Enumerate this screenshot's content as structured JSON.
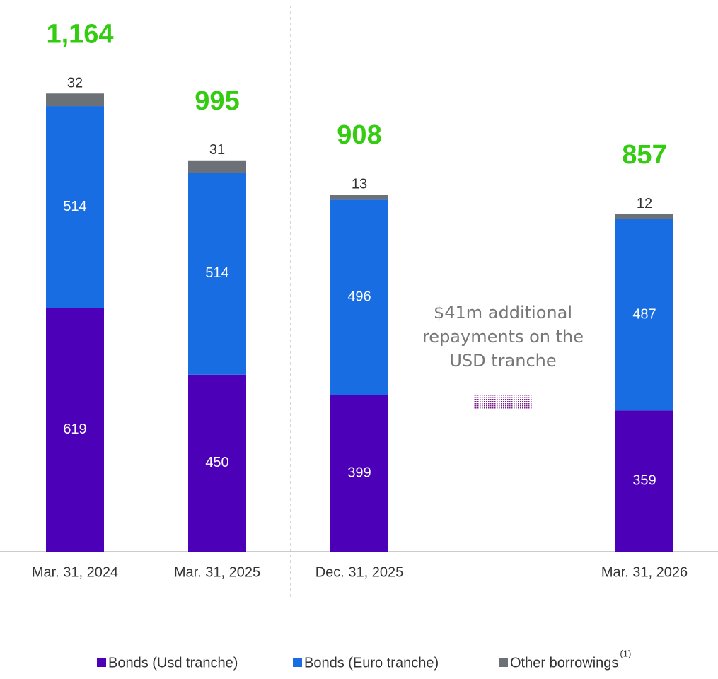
{
  "chart_data": {
    "type": "stacked_bar",
    "categories": [
      "Mar. 31, 2024",
      "Mar. 31, 2025",
      "Dec. 31, 2025",
      "Mar. 31, 2026"
    ],
    "series": [
      {
        "name": "Bonds (Usd tranche)",
        "color": "#4c00b8",
        "values": [
          619,
          450,
          399,
          359
        ]
      },
      {
        "name": "Bonds (Euro tranche)",
        "color": "#196de3",
        "values": [
          514,
          514,
          496,
          487
        ]
      },
      {
        "name": "Other borrowings",
        "color": "#6c7077",
        "values": [
          32,
          31,
          13,
          12
        ]
      }
    ],
    "legend_footnote": "(1)",
    "totals": [
      1164,
      995,
      908,
      857
    ],
    "total_labels": [
      "1,164",
      "995",
      "908",
      "857"
    ],
    "total_color": "#33cc11",
    "annotation": [
      "$41m additional",
      "repayments on the",
      "USD tranche"
    ]
  }
}
